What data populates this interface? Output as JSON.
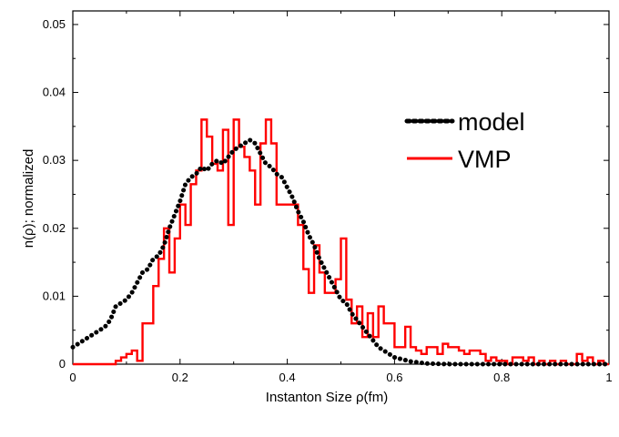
{
  "chart_data": {
    "type": "line",
    "title": "",
    "xlabel": "Instanton Size ρ(fm)",
    "ylabel": "n(ρ);  normalized",
    "xlim": [
      0,
      1
    ],
    "ylim": [
      0,
      0.052
    ],
    "x_ticks": [
      "0",
      "0.2",
      "0.4",
      "0.6",
      "0.8",
      "1"
    ],
    "y_ticks": [
      "0",
      "0.01",
      "0.02",
      "0.03",
      "0.04",
      "0.05"
    ],
    "x_tick_values": [
      0,
      0.2,
      0.4,
      0.6,
      0.8,
      1.0
    ],
    "y_tick_values": [
      0,
      0.01,
      0.02,
      0.03,
      0.04,
      0.05
    ],
    "grid": false,
    "legend_position": "top-right",
    "series": [
      {
        "name": "model",
        "style": "dotted",
        "color": "#000000",
        "points": [
          [
            0.0,
            0.0025
          ],
          [
            0.01,
            0.003
          ],
          [
            0.02,
            0.0035
          ],
          [
            0.03,
            0.004
          ],
          [
            0.04,
            0.0045
          ],
          [
            0.05,
            0.005
          ],
          [
            0.06,
            0.0055
          ],
          [
            0.07,
            0.0065
          ],
          [
            0.08,
            0.0085
          ],
          [
            0.09,
            0.009
          ],
          [
            0.1,
            0.0095
          ],
          [
            0.11,
            0.0105
          ],
          [
            0.12,
            0.012
          ],
          [
            0.13,
            0.0135
          ],
          [
            0.14,
            0.014
          ],
          [
            0.15,
            0.0155
          ],
          [
            0.16,
            0.016
          ],
          [
            0.17,
            0.0175
          ],
          [
            0.18,
            0.02
          ],
          [
            0.19,
            0.022
          ],
          [
            0.2,
            0.024
          ],
          [
            0.21,
            0.0265
          ],
          [
            0.22,
            0.0275
          ],
          [
            0.23,
            0.028
          ],
          [
            0.24,
            0.029
          ],
          [
            0.25,
            0.0285
          ],
          [
            0.26,
            0.0295
          ],
          [
            0.27,
            0.03
          ],
          [
            0.28,
            0.0295
          ],
          [
            0.29,
            0.0305
          ],
          [
            0.3,
            0.0315
          ],
          [
            0.31,
            0.032
          ],
          [
            0.32,
            0.0325
          ],
          [
            0.33,
            0.033
          ],
          [
            0.34,
            0.0325
          ],
          [
            0.35,
            0.031
          ],
          [
            0.36,
            0.0295
          ],
          [
            0.37,
            0.029
          ],
          [
            0.38,
            0.028
          ],
          [
            0.39,
            0.0275
          ],
          [
            0.4,
            0.026
          ],
          [
            0.41,
            0.0245
          ],
          [
            0.42,
            0.0225
          ],
          [
            0.43,
            0.021
          ],
          [
            0.44,
            0.019
          ],
          [
            0.45,
            0.0175
          ],
          [
            0.46,
            0.0155
          ],
          [
            0.47,
            0.014
          ],
          [
            0.48,
            0.0125
          ],
          [
            0.49,
            0.011
          ],
          [
            0.5,
            0.0095
          ],
          [
            0.51,
            0.009
          ],
          [
            0.52,
            0.0075
          ],
          [
            0.53,
            0.0065
          ],
          [
            0.54,
            0.0055
          ],
          [
            0.55,
            0.0045
          ],
          [
            0.56,
            0.0035
          ],
          [
            0.57,
            0.0025
          ],
          [
            0.58,
            0.002
          ],
          [
            0.59,
            0.0015
          ],
          [
            0.6,
            0.001
          ],
          [
            0.61,
            0.0008
          ],
          [
            0.62,
            0.0006
          ],
          [
            0.63,
            0.0004
          ],
          [
            0.64,
            0.0003
          ],
          [
            0.65,
            0.0002
          ],
          [
            0.66,
            0.0001
          ],
          [
            0.68,
            5e-05
          ],
          [
            0.7,
            0.0
          ],
          [
            0.75,
            0.0
          ],
          [
            0.8,
            0.0
          ],
          [
            0.9,
            0.0
          ],
          [
            1.0,
            0.0
          ]
        ]
      },
      {
        "name": "VMP",
        "style": "step",
        "color": "#ff0000",
        "points": [
          [
            0.0,
            0.0
          ],
          [
            0.07,
            0.0
          ],
          [
            0.08,
            0.0005
          ],
          [
            0.09,
            0.001
          ],
          [
            0.1,
            0.0015
          ],
          [
            0.11,
            0.002
          ],
          [
            0.12,
            0.0005
          ],
          [
            0.13,
            0.006
          ],
          [
            0.14,
            0.006
          ],
          [
            0.15,
            0.0115
          ],
          [
            0.16,
            0.0155
          ],
          [
            0.17,
            0.02
          ],
          [
            0.18,
            0.0135
          ],
          [
            0.19,
            0.0185
          ],
          [
            0.2,
            0.0235
          ],
          [
            0.21,
            0.0205
          ],
          [
            0.22,
            0.0265
          ],
          [
            0.23,
            0.0285
          ],
          [
            0.24,
            0.036
          ],
          [
            0.25,
            0.0335
          ],
          [
            0.26,
            0.0295
          ],
          [
            0.27,
            0.0285
          ],
          [
            0.28,
            0.0345
          ],
          [
            0.29,
            0.0205
          ],
          [
            0.3,
            0.036
          ],
          [
            0.31,
            0.032
          ],
          [
            0.32,
            0.0305
          ],
          [
            0.33,
            0.0285
          ],
          [
            0.34,
            0.0235
          ],
          [
            0.35,
            0.0325
          ],
          [
            0.36,
            0.036
          ],
          [
            0.37,
            0.0325
          ],
          [
            0.38,
            0.0235
          ],
          [
            0.39,
            0.0235
          ],
          [
            0.4,
            0.0235
          ],
          [
            0.41,
            0.0235
          ],
          [
            0.42,
            0.0205
          ],
          [
            0.43,
            0.014
          ],
          [
            0.44,
            0.0105
          ],
          [
            0.45,
            0.0175
          ],
          [
            0.46,
            0.0135
          ],
          [
            0.47,
            0.0105
          ],
          [
            0.48,
            0.0105
          ],
          [
            0.49,
            0.0125
          ],
          [
            0.5,
            0.0185
          ],
          [
            0.51,
            0.0095
          ],
          [
            0.52,
            0.006
          ],
          [
            0.53,
            0.0085
          ],
          [
            0.54,
            0.004
          ],
          [
            0.55,
            0.0075
          ],
          [
            0.56,
            0.004
          ],
          [
            0.57,
            0.0085
          ],
          [
            0.58,
            0.006
          ],
          [
            0.59,
            0.006
          ],
          [
            0.6,
            0.0025
          ],
          [
            0.61,
            0.0025
          ],
          [
            0.62,
            0.0055
          ],
          [
            0.63,
            0.0025
          ],
          [
            0.64,
            0.002
          ],
          [
            0.65,
            0.0015
          ],
          [
            0.66,
            0.0025
          ],
          [
            0.67,
            0.0025
          ],
          [
            0.68,
            0.0015
          ],
          [
            0.69,
            0.003
          ],
          [
            0.7,
            0.0025
          ],
          [
            0.71,
            0.0025
          ],
          [
            0.72,
            0.002
          ],
          [
            0.73,
            0.0015
          ],
          [
            0.74,
            0.002
          ],
          [
            0.75,
            0.002
          ],
          [
            0.76,
            0.0015
          ],
          [
            0.77,
            0.0005
          ],
          [
            0.78,
            0.001
          ],
          [
            0.79,
            0.0005
          ],
          [
            0.8,
            0.0005
          ],
          [
            0.81,
            0.0
          ],
          [
            0.82,
            0.001
          ],
          [
            0.83,
            0.001
          ],
          [
            0.84,
            0.0005
          ],
          [
            0.85,
            0.001
          ],
          [
            0.86,
            0.0
          ],
          [
            0.87,
            0.0005
          ],
          [
            0.88,
            0.0
          ],
          [
            0.89,
            0.0005
          ],
          [
            0.9,
            0.0
          ],
          [
            0.91,
            0.0005
          ],
          [
            0.92,
            0.0
          ],
          [
            0.93,
            0.0
          ],
          [
            0.94,
            0.0015
          ],
          [
            0.95,
            0.0005
          ],
          [
            0.96,
            0.001
          ],
          [
            0.97,
            0.0
          ],
          [
            0.98,
            0.0005
          ],
          [
            0.99,
            0.0
          ],
          [
            1.0,
            0.0
          ]
        ]
      }
    ]
  }
}
